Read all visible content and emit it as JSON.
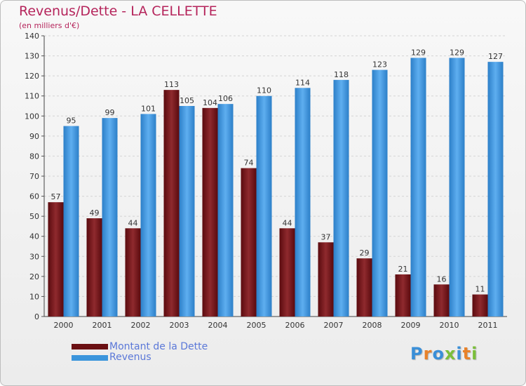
{
  "colors": {
    "dette": "#7a1418",
    "revenus": "#3b95dc",
    "title": "#b5245b",
    "legend_text": "#5b78d8",
    "logo": [
      "#3a8fd8",
      "#e8822a",
      "#3a8fd8",
      "#7bbf3a",
      "#3a8fd8",
      "#e8822a",
      "#7bbf3a"
    ]
  },
  "chart_data": {
    "type": "bar",
    "title": "Revenus/Dette - LA CELLETTE",
    "subtitle": "(en milliers d'€)",
    "categories": [
      "2000",
      "2001",
      "2002",
      "2003",
      "2004",
      "2005",
      "2006",
      "2007",
      "2008",
      "2009",
      "2010",
      "2011"
    ],
    "series": [
      {
        "name": "Montant de la Dette",
        "values": [
          57,
          49,
          44,
          113,
          104,
          74,
          44,
          37,
          29,
          21,
          16,
          11
        ]
      },
      {
        "name": "Revenus",
        "values": [
          95,
          99,
          101,
          105,
          106,
          110,
          114,
          118,
          123,
          129,
          129,
          127
        ]
      }
    ],
    "ylim": [
      0,
      140
    ],
    "yticks": [
      0,
      10,
      20,
      30,
      40,
      50,
      60,
      70,
      80,
      90,
      100,
      110,
      120,
      130,
      140
    ],
    "grid": true,
    "legend": "bottom-left"
  },
  "logo": {
    "text": "Proxiti",
    "letters": [
      "P",
      "r",
      "o",
      "x",
      "i",
      "t",
      "i"
    ]
  }
}
